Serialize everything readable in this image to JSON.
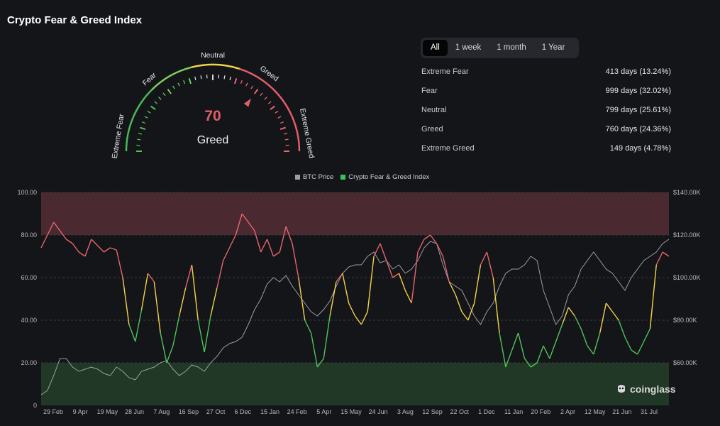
{
  "page": {
    "title": "Crypto Fear & Greed Index"
  },
  "gauge": {
    "value": "70",
    "classification": "Greed",
    "zones": [
      "Extreme Fear",
      "Fear",
      "Neutral",
      "Greed",
      "Extreme Greed"
    ],
    "pointer_value": 70
  },
  "tabs": [
    {
      "label": "All",
      "active": true
    },
    {
      "label": "1 week",
      "active": false
    },
    {
      "label": "1 month",
      "active": false
    },
    {
      "label": "1 Year",
      "active": false
    }
  ],
  "stats": [
    {
      "label": "Extreme Fear",
      "value": "413 days (13.24%)"
    },
    {
      "label": "Fear",
      "value": "999 days (32.02%)"
    },
    {
      "label": "Neutral",
      "value": "799 days (25.61%)"
    },
    {
      "label": "Greed",
      "value": "760 days (24.36%)"
    },
    {
      "label": "Extreme Greed",
      "value": "149 days (4.78%)"
    }
  ],
  "legend": [
    {
      "label": "BTC Price",
      "color": "#9e9ea3"
    },
    {
      "label": "Crypto Fear & Greed Index",
      "color": "#3fbf5c"
    }
  ],
  "watermark": "coinglass",
  "colors": {
    "extreme_greed_band": "#4d2a31",
    "extreme_fear_band": "#213a26",
    "greed_line": "#e8656e",
    "neutral_line": "#f2d34a",
    "fear_line": "#4fc45a",
    "btc_line": "#b4b4b8"
  },
  "chart_data": {
    "type": "line",
    "x_ticks": [
      "29 Feb",
      "9 Apr",
      "19 May",
      "28 Jun",
      "7 Aug",
      "16 Sep",
      "27 Oct",
      "6 Dec",
      "15 Jan",
      "24 Feb",
      "5 Apr",
      "15 May",
      "24 Jun",
      "3 Aug",
      "12 Sep",
      "22 Oct",
      "1 Dec",
      "11 Jan",
      "20 Feb",
      "2 Apr",
      "12 May",
      "21 Jun",
      "31 Jul"
    ],
    "y_left_ticks": [
      "0",
      "20.00",
      "40.00",
      "60.00",
      "80.00",
      "100.00"
    ],
    "y_left_range": [
      0,
      100
    ],
    "y_right_ticks": [
      "$60.00K",
      "$80.00K",
      "$100.00K",
      "$120.00K",
      "$140.00K"
    ],
    "y_right_range": [
      40,
      140
    ],
    "bands": [
      {
        "name": "Extreme Greed",
        "from": 80,
        "to": 100
      },
      {
        "name": "Extreme Fear",
        "from": 0,
        "to": 20
      }
    ],
    "series": [
      {
        "name": "Crypto Fear & Greed Index",
        "axis": "left",
        "values": [
          74,
          80,
          86,
          82,
          78,
          76,
          72,
          70,
          78,
          75,
          72,
          74,
          73,
          60,
          38,
          30,
          45,
          62,
          58,
          34,
          20,
          28,
          42,
          55,
          66,
          40,
          25,
          42,
          55,
          68,
          74,
          80,
          90,
          86,
          82,
          72,
          78,
          70,
          72,
          84,
          76,
          60,
          40,
          34,
          18,
          22,
          42,
          58,
          62,
          48,
          42,
          38,
          44,
          70,
          76,
          68,
          60,
          62,
          54,
          48,
          72,
          78,
          80,
          76,
          70,
          58,
          52,
          44,
          40,
          48,
          66,
          72,
          60,
          34,
          18,
          26,
          34,
          22,
          18,
          20,
          28,
          22,
          30,
          38,
          46,
          42,
          36,
          28,
          24,
          34,
          48,
          44,
          40,
          32,
          26,
          24,
          30,
          36,
          66,
          72,
          70
        ]
      },
      {
        "name": "BTC Price",
        "axis": "right",
        "values": [
          45,
          47,
          54,
          62,
          62,
          58,
          56,
          57,
          58,
          57,
          55,
          54,
          58,
          56,
          53,
          52,
          56,
          57,
          58,
          60,
          61,
          57,
          54,
          56,
          59,
          58,
          56,
          60,
          63,
          67,
          69,
          70,
          72,
          78,
          85,
          90,
          97,
          100,
          98,
          101,
          96,
          92,
          88,
          84,
          82,
          85,
          89,
          96,
          102,
          105,
          106,
          106,
          110,
          112,
          107,
          108,
          104,
          106,
          102,
          104,
          108,
          114,
          117,
          116,
          106,
          98,
          96,
          94,
          88,
          82,
          78,
          84,
          88,
          96,
          102,
          104,
          104,
          106,
          110,
          108,
          94,
          86,
          78,
          82,
          92,
          96,
          104,
          108,
          112,
          108,
          104,
          102,
          98,
          94,
          100,
          104,
          108,
          110,
          112,
          116,
          118
        ]
      }
    ]
  }
}
